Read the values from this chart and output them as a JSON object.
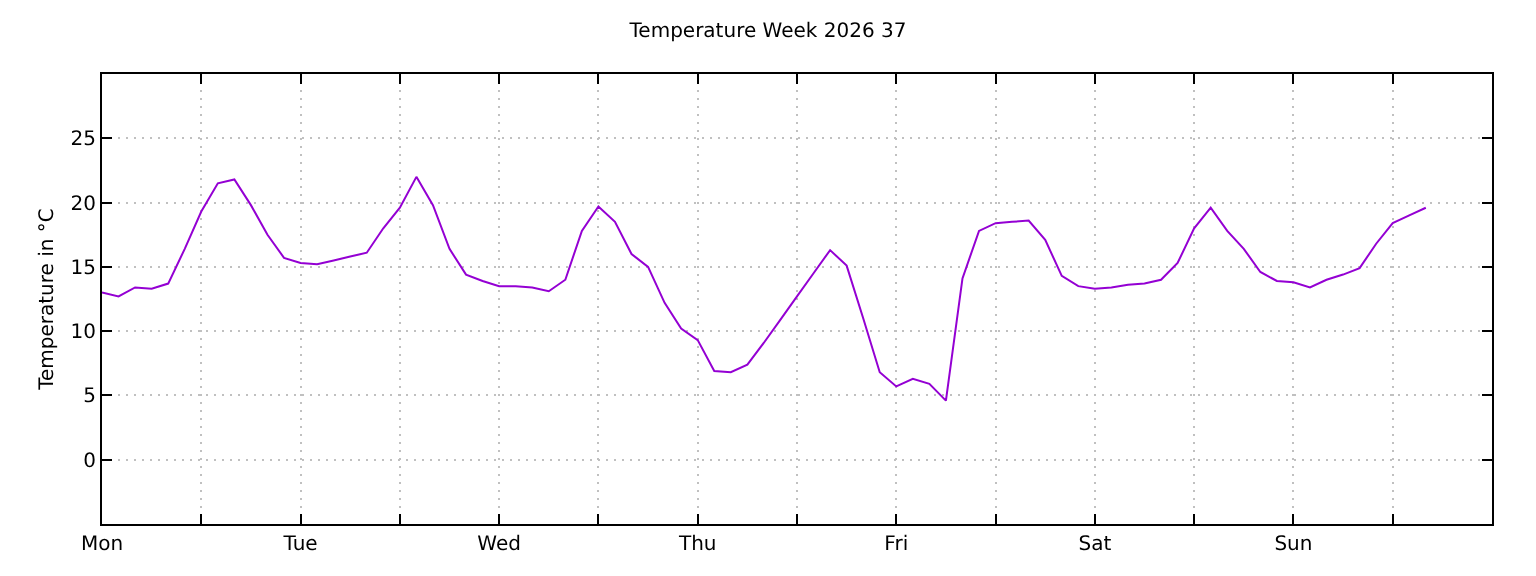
{
  "chart_data": {
    "type": "line",
    "title": "Temperature Week 2026 37",
    "ylabel": "Temperature in °C",
    "categories": [
      "Mon",
      null,
      null,
      null,
      null,
      null,
      null,
      null,
      null,
      null,
      null,
      null,
      "Tue",
      null,
      null,
      null,
      null,
      null,
      null,
      null,
      null,
      null,
      null,
      null,
      "Wed",
      null,
      null,
      null,
      null,
      null,
      null,
      null,
      null,
      null,
      null,
      null,
      "Thu",
      null,
      null,
      null,
      null,
      null,
      null,
      null,
      null,
      null,
      null,
      null,
      "Fri",
      null,
      null,
      null,
      null,
      null,
      null,
      null,
      null,
      null,
      null,
      null,
      "Sat",
      null,
      null,
      null,
      null,
      null,
      null,
      null,
      null,
      null,
      null,
      null,
      "Sun",
      null,
      null,
      null,
      null,
      null,
      null,
      null,
      null,
      null,
      null,
      null,
      null
    ],
    "ylim": [
      -5,
      30
    ],
    "yticks": [
      0,
      5,
      10,
      15,
      20,
      25
    ],
    "grid": true,
    "line_style": "solid",
    "series": [
      {
        "color": "#9400d3",
        "values": [
          13.0,
          12.7,
          13.4,
          13.3,
          13.7,
          16.4,
          19.3,
          21.5,
          21.8,
          19.8,
          17.5,
          15.7,
          15.3,
          15.2,
          15.5,
          15.8,
          16.1,
          18.0,
          19.6,
          22.0,
          19.8,
          16.4,
          14.4,
          13.9,
          13.5,
          13.5,
          13.4,
          13.1,
          14.0,
          17.8,
          19.7,
          18.5,
          16.0,
          15.0,
          12.2,
          10.2,
          9.3,
          6.9,
          6.8,
          7.4,
          9.1,
          10.9,
          12.7,
          14.5,
          16.3,
          15.1,
          11.0,
          6.8,
          5.7,
          6.3,
          5.9,
          4.6,
          14.1,
          17.8,
          18.4,
          18.5,
          18.6,
          17.1,
          14.3,
          13.5,
          13.3,
          13.4,
          13.6,
          13.7,
          14.0,
          15.3,
          18.0,
          19.6,
          17.8,
          16.4,
          14.6,
          13.9,
          13.8,
          13.4,
          14.0,
          14.4,
          14.9,
          16.8,
          18.4,
          19.0,
          19.6,
          null,
          null,
          null,
          null
        ]
      }
    ]
  }
}
